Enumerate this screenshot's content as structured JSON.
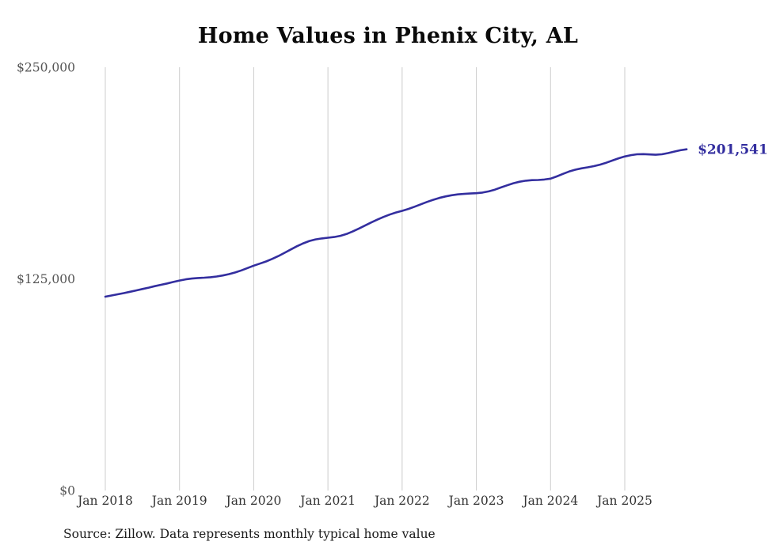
{
  "chart_data": {
    "type": "line",
    "title": "Home Values in Phenix City, AL",
    "series_name": "Monthly typical home value",
    "source": "Source: Zillow. Data represents monthly typical home value",
    "end_label": "$201,541",
    "final_value": 201541,
    "ylim": [
      0,
      250000
    ],
    "grid": "vertical-only",
    "legend": "none",
    "x_ticks": [
      "Jan 2018",
      "Jan 2019",
      "Jan 2020",
      "Jan 2021",
      "Jan 2022",
      "Jan 2023",
      "Jan 2024",
      "Jan 2025"
    ],
    "y_ticks": [
      {
        "label": "$250,000",
        "value": 250000
      },
      {
        "label": "$125,000",
        "value": 125000
      },
      {
        "label": "$0",
        "value": 0
      }
    ],
    "months": [
      "2018-01",
      "2018-02",
      "2018-03",
      "2018-04",
      "2018-05",
      "2018-06",
      "2018-07",
      "2018-08",
      "2018-09",
      "2018-10",
      "2018-11",
      "2018-12",
      "2019-01",
      "2019-02",
      "2019-03",
      "2019-04",
      "2019-05",
      "2019-06",
      "2019-07",
      "2019-08",
      "2019-09",
      "2019-10",
      "2019-11",
      "2019-12",
      "2020-01",
      "2020-02",
      "2020-03",
      "2020-04",
      "2020-05",
      "2020-06",
      "2020-07",
      "2020-08",
      "2020-09",
      "2020-10",
      "2020-11",
      "2020-12",
      "2021-01",
      "2021-02",
      "2021-03",
      "2021-04",
      "2021-05",
      "2021-06",
      "2021-07",
      "2021-08",
      "2021-09",
      "2021-10",
      "2021-11",
      "2021-12",
      "2022-01",
      "2022-02",
      "2022-03",
      "2022-04",
      "2022-05",
      "2022-06",
      "2022-07",
      "2022-08",
      "2022-09",
      "2022-10",
      "2022-11",
      "2022-12",
      "2023-01",
      "2023-02",
      "2023-03",
      "2023-04",
      "2023-05",
      "2023-06",
      "2023-07",
      "2023-08",
      "2023-09",
      "2023-10",
      "2023-11",
      "2023-12",
      "2024-01",
      "2024-02",
      "2024-03",
      "2024-04",
      "2024-05",
      "2024-06",
      "2024-07",
      "2024-08",
      "2024-09",
      "2024-10",
      "2024-11",
      "2024-12",
      "2025-01",
      "2025-02",
      "2025-03",
      "2025-04",
      "2025-05",
      "2025-06",
      "2025-07",
      "2025-08",
      "2025-09",
      "2025-10",
      "2025-11"
    ],
    "values": [
      114500,
      115200,
      115900,
      116600,
      117400,
      118200,
      119000,
      119800,
      120700,
      121500,
      122300,
      123200,
      124000,
      124700,
      125200,
      125500,
      125700,
      126000,
      126400,
      127000,
      127800,
      128800,
      130000,
      131400,
      132800,
      134000,
      135300,
      136800,
      138500,
      140400,
      142400,
      144300,
      146000,
      147400,
      148300,
      148900,
      149300,
      149700,
      150400,
      151500,
      153000,
      154700,
      156500,
      158300,
      160000,
      161600,
      163000,
      164200,
      165200,
      166300,
      167600,
      169000,
      170400,
      171700,
      172800,
      173700,
      174400,
      174900,
      175200,
      175400,
      175600,
      176000,
      176700,
      177700,
      179000,
      180300,
      181500,
      182400,
      183000,
      183300,
      183400,
      183700,
      184200,
      185500,
      187000,
      188400,
      189500,
      190300,
      190900,
      191600,
      192500,
      193600,
      194900,
      196200,
      197300,
      198100,
      198600,
      198700,
      198500,
      198300,
      198600,
      199300,
      200200,
      201000,
      201541
    ],
    "colors": {
      "line": "#332e9f",
      "end_label": "#332e9f",
      "gridline": "#cccccc",
      "axis_text": "#444444",
      "title_text": "#0a0a0a"
    }
  }
}
